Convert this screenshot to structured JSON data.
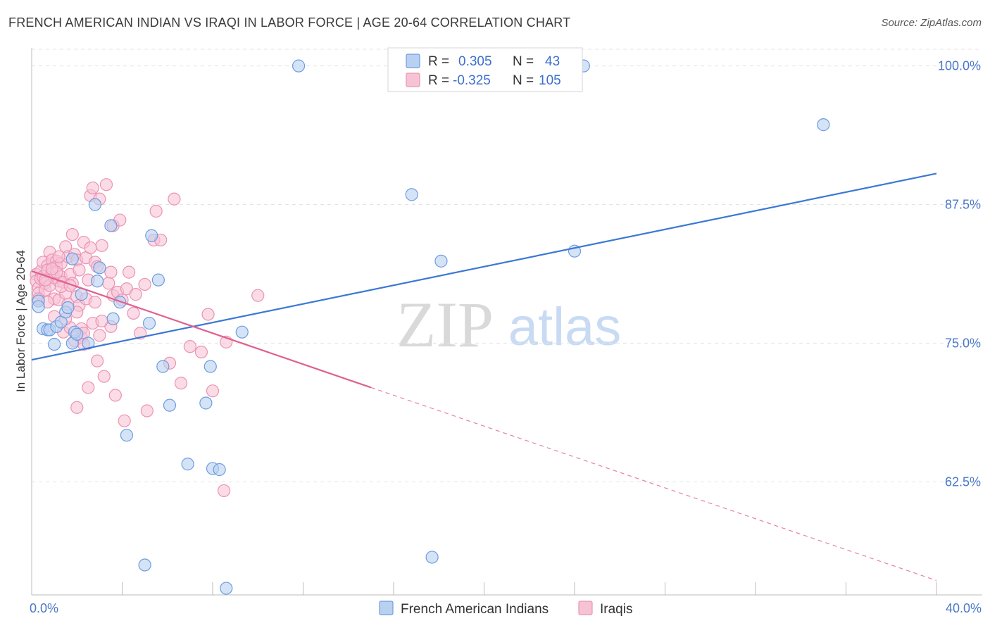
{
  "title": "FRENCH AMERICAN INDIAN VS IRAQI IN LABOR FORCE | AGE 20-64 CORRELATION CHART",
  "source": "Source: ZipAtlas.com",
  "watermark": {
    "zip": "ZIP",
    "atlas": "atlas"
  },
  "colors": {
    "blue": "#3a78d6",
    "blue_fill": "#b9d0f1",
    "blue_stroke": "#6d9de0",
    "pink": "#e0608f",
    "pink_fill": "#f6c3d5",
    "pink_stroke": "#ec93b3",
    "grid": "#e3e3e3",
    "tick_label": "#4a78c8"
  },
  "legend": {
    "rows": [
      {
        "r_label": "R =",
        "r_value": "0.305",
        "n_label": "N =",
        "n_value": "43",
        "color": "blue"
      },
      {
        "r_label": "R =",
        "r_value": "-0.325",
        "n_label": "N =",
        "n_value": "105",
        "color": "pink"
      }
    ]
  },
  "bottom_legend": [
    "French American Indians",
    "Iraqis"
  ],
  "chart_data": {
    "type": "scatter",
    "title": "FRENCH AMERICAN INDIAN VS IRAQI IN LABOR FORCE | AGE 20-64 CORRELATION CHART",
    "xlabel": "",
    "ylabel": "In Labor Force | Age 20-64",
    "xlim": [
      0,
      40
    ],
    "ylim": [
      52.3,
      101.5
    ],
    "x_tick_labels": [
      "0.0%",
      "40.0%"
    ],
    "y_ticks": [
      62.5,
      75.0,
      87.5,
      100.0
    ],
    "y_tick_labels": [
      "62.5%",
      "75.0%",
      "87.5%",
      "100.0%"
    ],
    "series": [
      {
        "name": "French American Indians",
        "color": "blue",
        "points": [
          [
            0.3,
            78.8
          ],
          [
            0.3,
            78.3
          ],
          [
            0.5,
            76.3
          ],
          [
            0.7,
            76.2
          ],
          [
            0.8,
            76.2
          ],
          [
            1.0,
            74.9
          ],
          [
            1.1,
            76.5
          ],
          [
            1.3,
            76.9
          ],
          [
            1.5,
            77.8
          ],
          [
            1.6,
            78.2
          ],
          [
            1.8,
            82.6
          ],
          [
            1.8,
            75.0
          ],
          [
            1.9,
            76.0
          ],
          [
            2.0,
            75.8
          ],
          [
            2.2,
            79.4
          ],
          [
            2.5,
            75.0
          ],
          [
            2.8,
            87.5
          ],
          [
            2.9,
            80.6
          ],
          [
            3.0,
            81.8
          ],
          [
            3.5,
            85.6
          ],
          [
            3.6,
            77.2
          ],
          [
            3.9,
            78.7
          ],
          [
            4.2,
            66.7
          ],
          [
            5.2,
            76.8
          ],
          [
            5.3,
            84.7
          ],
          [
            5.6,
            80.7
          ],
          [
            5.0,
            55.0
          ],
          [
            5.8,
            72.9
          ],
          [
            6.1,
            69.4
          ],
          [
            6.9,
            64.1
          ],
          [
            7.7,
            69.6
          ],
          [
            7.9,
            72.9
          ],
          [
            8.0,
            63.7
          ],
          [
            8.3,
            63.6
          ],
          [
            8.6,
            52.9
          ],
          [
            9.3,
            76.0
          ],
          [
            11.8,
            100.0
          ],
          [
            16.8,
            88.4
          ],
          [
            17.7,
            55.7
          ],
          [
            18.1,
            82.4
          ],
          [
            24.4,
            100.0
          ],
          [
            24.0,
            83.3
          ],
          [
            35.0,
            94.7
          ]
        ],
        "trend": {
          "x0": 0.0,
          "y0": 73.5,
          "x1": 40.0,
          "y1": 90.3
        }
      },
      {
        "name": "Iraqis",
        "color": "pink",
        "points": [
          [
            0.2,
            81.2
          ],
          [
            0.2,
            80.6
          ],
          [
            0.3,
            80.0
          ],
          [
            0.3,
            79.5
          ],
          [
            0.3,
            79.0
          ],
          [
            0.4,
            81.5
          ],
          [
            0.4,
            80.8
          ],
          [
            0.5,
            82.3
          ],
          [
            0.5,
            81.0
          ],
          [
            0.6,
            80.4
          ],
          [
            0.6,
            79.8
          ],
          [
            0.7,
            82.0
          ],
          [
            0.7,
            81.6
          ],
          [
            0.8,
            83.2
          ],
          [
            0.8,
            80.2
          ],
          [
            0.9,
            82.5
          ],
          [
            0.9,
            81.3
          ],
          [
            1.0,
            80.9
          ],
          [
            1.0,
            79.0
          ],
          [
            1.0,
            77.4
          ],
          [
            1.1,
            82.4
          ],
          [
            1.1,
            81.9
          ],
          [
            1.2,
            80.6
          ],
          [
            1.2,
            78.9
          ],
          [
            1.3,
            82.2
          ],
          [
            1.3,
            81.0
          ],
          [
            1.4,
            80.5
          ],
          [
            1.4,
            76.0
          ],
          [
            1.5,
            83.7
          ],
          [
            1.5,
            79.5
          ],
          [
            1.6,
            82.8
          ],
          [
            1.6,
            78.5
          ],
          [
            1.7,
            81.2
          ],
          [
            1.7,
            76.4
          ],
          [
            1.8,
            84.8
          ],
          [
            1.8,
            80.4
          ],
          [
            1.9,
            83.0
          ],
          [
            1.9,
            75.2
          ],
          [
            2.0,
            82.5
          ],
          [
            2.0,
            79.2
          ],
          [
            2.0,
            69.2
          ],
          [
            2.1,
            81.6
          ],
          [
            2.1,
            78.4
          ],
          [
            2.2,
            76.3
          ],
          [
            2.2,
            75.5
          ],
          [
            2.3,
            84.1
          ],
          [
            2.3,
            75.9
          ],
          [
            2.3,
            74.9
          ],
          [
            2.4,
            82.7
          ],
          [
            2.4,
            79.0
          ],
          [
            2.5,
            80.7
          ],
          [
            2.5,
            71.0
          ],
          [
            2.6,
            88.3
          ],
          [
            2.7,
            76.8
          ],
          [
            2.7,
            89.0
          ],
          [
            2.8,
            82.3
          ],
          [
            2.8,
            78.7
          ],
          [
            2.9,
            81.9
          ],
          [
            2.9,
            73.4
          ],
          [
            3.0,
            88.0
          ],
          [
            3.0,
            75.7
          ],
          [
            3.1,
            83.8
          ],
          [
            3.2,
            72.0
          ],
          [
            3.3,
            89.3
          ],
          [
            3.4,
            80.4
          ],
          [
            3.5,
            81.4
          ],
          [
            3.5,
            76.5
          ],
          [
            3.6,
            85.6
          ],
          [
            3.6,
            79.3
          ],
          [
            3.7,
            70.3
          ],
          [
            3.8,
            79.6
          ],
          [
            3.9,
            86.1
          ],
          [
            4.0,
            78.9
          ],
          [
            4.1,
            68.0
          ],
          [
            4.2,
            79.9
          ],
          [
            4.3,
            81.4
          ],
          [
            4.5,
            77.7
          ],
          [
            4.6,
            79.4
          ],
          [
            4.8,
            75.9
          ],
          [
            5.0,
            80.3
          ],
          [
            5.1,
            68.9
          ],
          [
            5.4,
            84.3
          ],
          [
            5.5,
            86.9
          ],
          [
            5.7,
            84.3
          ],
          [
            6.1,
            73.2
          ],
          [
            6.3,
            88.0
          ],
          [
            6.6,
            71.4
          ],
          [
            7.0,
            74.7
          ],
          [
            7.5,
            74.2
          ],
          [
            7.8,
            77.6
          ],
          [
            8.0,
            70.7
          ],
          [
            8.6,
            75.1
          ],
          [
            8.5,
            61.7
          ],
          [
            10.0,
            79.3
          ],
          [
            1.1,
            81.4
          ],
          [
            0.6,
            80.7
          ],
          [
            1.3,
            80.1
          ],
          [
            0.9,
            81.7
          ],
          [
            1.7,
            80.2
          ],
          [
            2.0,
            77.8
          ],
          [
            2.6,
            83.6
          ],
          [
            3.1,
            77.0
          ],
          [
            1.2,
            82.8
          ],
          [
            0.7,
            78.7
          ],
          [
            1.5,
            77.2
          ]
        ],
        "trend": {
          "x0": 0.0,
          "y0": 81.5,
          "x1": 15.0,
          "y1": 71.0
        },
        "trend_dashed": {
          "x0": 15.0,
          "y0": 71.0,
          "x1": 40.0,
          "y1": 53.6
        }
      }
    ]
  }
}
